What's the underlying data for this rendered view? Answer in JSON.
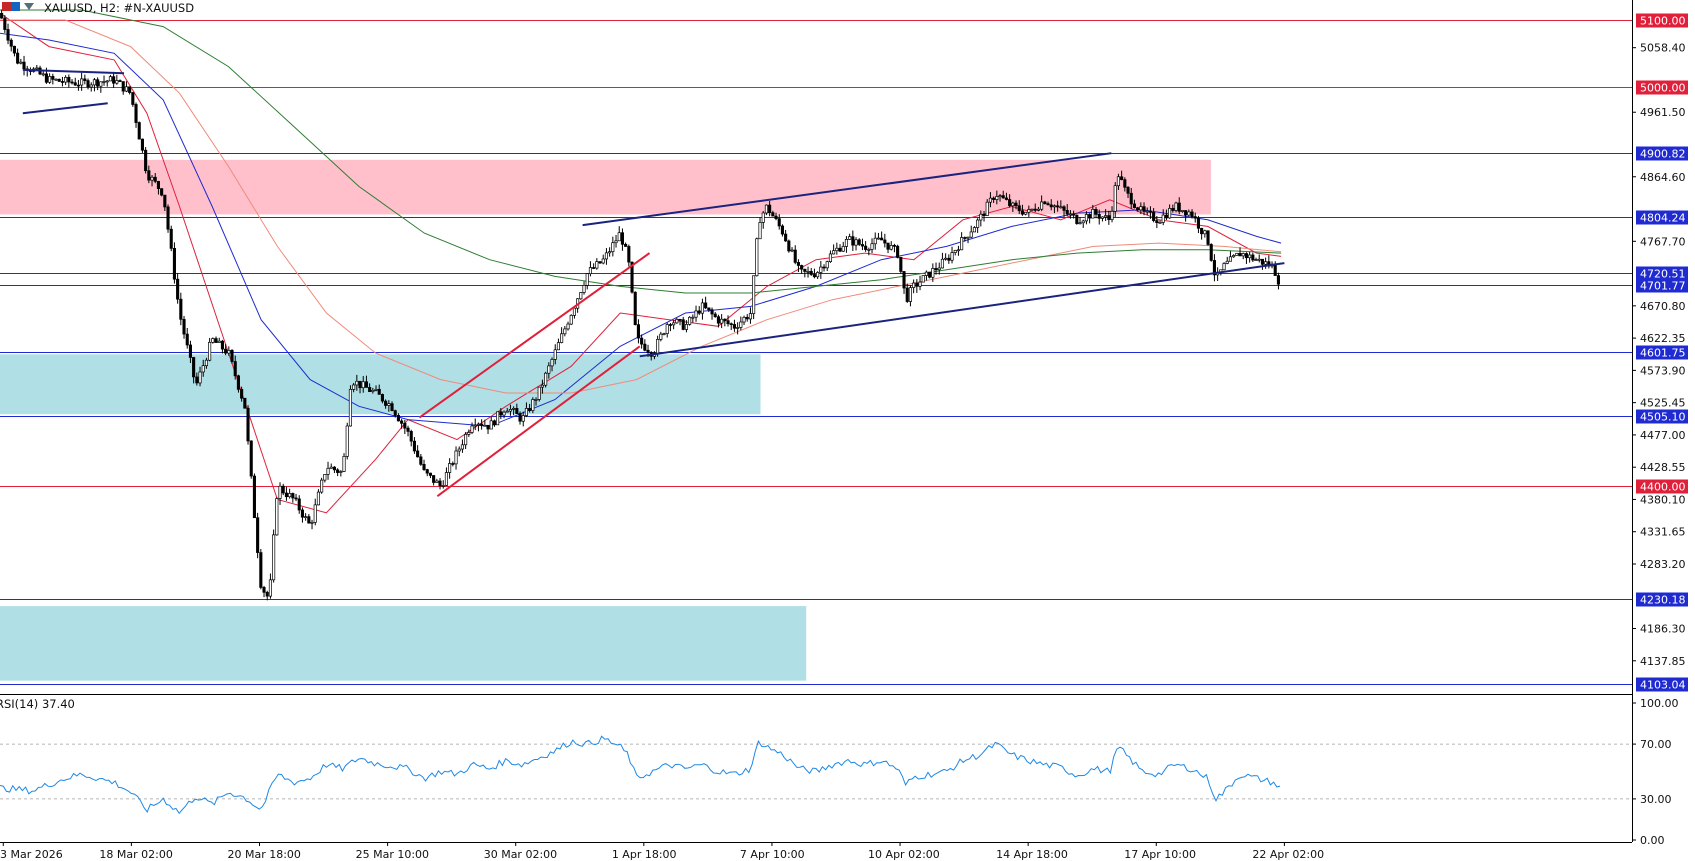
{
  "header": {
    "symbol_label": "XAUUSD, H2:  #N-XAUUSD",
    "rsi_label": "RSI(14) 37.40"
  },
  "chart_data": [
    {
      "type": "candlestick",
      "symbol": "XAUUSD",
      "timeframe": "H2",
      "ylim": [
        4100,
        5130
      ],
      "price_ticks": [
        "5058.40",
        "4961.50",
        "4864.60",
        "4767.70",
        "4670.80",
        "4622.35",
        "4573.90",
        "4525.45",
        "4477.00",
        "4428.55",
        "4380.10",
        "4331.65",
        "4283.20",
        "4186.30",
        "4137.85"
      ],
      "x_ticks": [
        "3 Mar 2026",
        "18 Mar 02:00",
        "20 Mar 18:00",
        "25 Mar 10:00",
        "30 Mar 02:00",
        "1 Apr 18:00",
        "7 Apr 10:00",
        "10 Apr 02:00",
        "14 Apr 18:00",
        "17 Apr 10:00",
        "22 Apr 02:00"
      ],
      "horizontal_levels": [
        {
          "price": 5100.0,
          "label": "5100.00",
          "color": "#e0203a"
        },
        {
          "price": 5000.0,
          "label": "5000.00",
          "color": "#e0203a"
        },
        {
          "price": 4900.82,
          "label": "4900.82",
          "color": "#1f2bd0"
        },
        {
          "price": 4804.24,
          "label": "4804.24",
          "color": "#1f2bd0"
        },
        {
          "price": 4720.51,
          "label": "4720.51",
          "color": "#1f2bd0"
        },
        {
          "price": 4701.77,
          "label": "4701.77",
          "color": "#1f2bd0"
        },
        {
          "price": 4601.75,
          "label": "4601.75",
          "color": "#1f2bd0"
        },
        {
          "price": 4505.1,
          "label": "4505.10",
          "color": "#1f2bd0"
        },
        {
          "price": 4400.0,
          "label": "4400.00",
          "color": "#e0203a"
        },
        {
          "price": 4230.18,
          "label": "4230.18",
          "color": "#1f2bd0"
        },
        {
          "price": 4103.04,
          "label": "4103.04",
          "color": "#1f2bd0"
        }
      ],
      "zones": [
        {
          "kind": "supply",
          "price_top": 4890,
          "price_bottom": 4808,
          "x_end_frac": 0.742,
          "color": "#ffc0cb"
        },
        {
          "kind": "demand",
          "price_top": 4598,
          "price_bottom": 4508,
          "x_end_frac": 0.466,
          "color": "#b0dfe5"
        },
        {
          "kind": "demand",
          "price_top": 4220,
          "price_bottom": 4108,
          "x_end_frac": 0.494,
          "color": "#b0dfe5"
        }
      ],
      "trendlines": [
        {
          "color": "#1a237e",
          "from": [
            0.014,
            4960
          ],
          "to": [
            0.066,
            4975
          ]
        },
        {
          "color": "#1a237e",
          "from": [
            0.014,
            5025
          ],
          "to": [
            0.076,
            5020
          ]
        },
        {
          "color": "#1a237e",
          "from": [
            0.357,
            4792
          ],
          "to": [
            0.681,
            4900
          ]
        },
        {
          "color": "#1a237e",
          "from": [
            0.392,
            4595
          ],
          "to": [
            0.787,
            4735
          ]
        },
        {
          "color": "#e0203a",
          "from": [
            0.257,
            4503
          ],
          "to": [
            0.398,
            4750
          ]
        },
        {
          "color": "#e0203a",
          "from": [
            0.268,
            4385
          ],
          "to": [
            0.392,
            4610
          ]
        }
      ],
      "moving_averages": [
        {
          "color": "#e0203a",
          "points": [
            [
              0.0,
              5110
            ],
            [
              0.03,
              5060
            ],
            [
              0.07,
              5040
            ],
            [
              0.09,
              4960
            ],
            [
              0.11,
              4820
            ],
            [
              0.14,
              4600
            ],
            [
              0.17,
              4380
            ],
            [
              0.2,
              4360
            ],
            [
              0.23,
              4440
            ],
            [
              0.25,
              4500
            ],
            [
              0.28,
              4470
            ],
            [
              0.31,
              4520
            ],
            [
              0.35,
              4580
            ],
            [
              0.38,
              4660
            ],
            [
              0.41,
              4650
            ],
            [
              0.44,
              4640
            ],
            [
              0.47,
              4700
            ],
            [
              0.5,
              4740
            ],
            [
              0.53,
              4750
            ],
            [
              0.56,
              4740
            ],
            [
              0.59,
              4800
            ],
            [
              0.62,
              4820
            ],
            [
              0.65,
              4800
            ],
            [
              0.68,
              4830
            ],
            [
              0.71,
              4800
            ],
            [
              0.74,
              4790
            ],
            [
              0.77,
              4750
            ],
            [
              0.785,
              4745
            ]
          ]
        },
        {
          "color": "#1f2bd0",
          "points": [
            [
              0.0,
              5080
            ],
            [
              0.03,
              5070
            ],
            [
              0.07,
              5050
            ],
            [
              0.1,
              4980
            ],
            [
              0.13,
              4820
            ],
            [
              0.16,
              4650
            ],
            [
              0.19,
              4560
            ],
            [
              0.22,
              4520
            ],
            [
              0.25,
              4500
            ],
            [
              0.3,
              4490
            ],
            [
              0.34,
              4530
            ],
            [
              0.38,
              4610
            ],
            [
              0.42,
              4660
            ],
            [
              0.46,
              4670
            ],
            [
              0.5,
              4700
            ],
            [
              0.54,
              4740
            ],
            [
              0.58,
              4760
            ],
            [
              0.62,
              4790
            ],
            [
              0.66,
              4810
            ],
            [
              0.7,
              4815
            ],
            [
              0.74,
              4800
            ],
            [
              0.77,
              4775
            ],
            [
              0.785,
              4765
            ]
          ]
        },
        {
          "color": "#f08a7a",
          "points": [
            [
              0.0,
              5100
            ],
            [
              0.04,
              5100
            ],
            [
              0.08,
              5060
            ],
            [
              0.11,
              4990
            ],
            [
              0.14,
              4880
            ],
            [
              0.17,
              4760
            ],
            [
              0.2,
              4660
            ],
            [
              0.23,
              4600
            ],
            [
              0.27,
              4560
            ],
            [
              0.31,
              4540
            ],
            [
              0.35,
              4540
            ],
            [
              0.39,
              4560
            ],
            [
              0.43,
              4610
            ],
            [
              0.47,
              4650
            ],
            [
              0.51,
              4680
            ],
            [
              0.55,
              4700
            ],
            [
              0.59,
              4720
            ],
            [
              0.63,
              4740
            ],
            [
              0.67,
              4760
            ],
            [
              0.71,
              4765
            ],
            [
              0.75,
              4760
            ],
            [
              0.785,
              4752
            ]
          ]
        },
        {
          "color": "#2e7d32",
          "points": [
            [
              0.0,
              5115
            ],
            [
              0.05,
              5115
            ],
            [
              0.1,
              5090
            ],
            [
              0.14,
              5030
            ],
            [
              0.18,
              4940
            ],
            [
              0.22,
              4850
            ],
            [
              0.26,
              4780
            ],
            [
              0.3,
              4740
            ],
            [
              0.34,
              4715
            ],
            [
              0.38,
              4700
            ],
            [
              0.42,
              4690
            ],
            [
              0.46,
              4690
            ],
            [
              0.5,
              4700
            ],
            [
              0.54,
              4710
            ],
            [
              0.58,
              4725
            ],
            [
              0.62,
              4740
            ],
            [
              0.66,
              4750
            ],
            [
              0.7,
              4755
            ],
            [
              0.74,
              4755
            ],
            [
              0.785,
              4750
            ]
          ]
        }
      ],
      "close_path": [
        [
          0.0,
          5110
        ],
        [
          0.01,
          5040
        ],
        [
          0.03,
          5010
        ],
        [
          0.05,
          5005
        ],
        [
          0.07,
          5010
        ],
        [
          0.08,
          4990
        ],
        [
          0.09,
          4870
        ],
        [
          0.1,
          4840
        ],
        [
          0.11,
          4660
        ],
        [
          0.12,
          4550
        ],
        [
          0.13,
          4620
        ],
        [
          0.14,
          4600
        ],
        [
          0.15,
          4520
        ],
        [
          0.155,
          4380
        ],
        [
          0.16,
          4250
        ],
        [
          0.165,
          4230
        ],
        [
          0.17,
          4400
        ],
        [
          0.18,
          4380
        ],
        [
          0.19,
          4340
        ],
        [
          0.2,
          4430
        ],
        [
          0.21,
          4420
        ],
        [
          0.215,
          4560
        ],
        [
          0.23,
          4540
        ],
        [
          0.24,
          4520
        ],
        [
          0.25,
          4480
        ],
        [
          0.26,
          4420
        ],
        [
          0.27,
          4400
        ],
        [
          0.28,
          4450
        ],
        [
          0.29,
          4500
        ],
        [
          0.3,
          4490
        ],
        [
          0.31,
          4520
        ],
        [
          0.32,
          4500
        ],
        [
          0.33,
          4540
        ],
        [
          0.34,
          4600
        ],
        [
          0.35,
          4660
        ],
        [
          0.36,
          4720
        ],
        [
          0.37,
          4740
        ],
        [
          0.38,
          4780
        ],
        [
          0.385,
          4740
        ],
        [
          0.39,
          4620
        ],
        [
          0.4,
          4600
        ],
        [
          0.41,
          4650
        ],
        [
          0.42,
          4640
        ],
        [
          0.43,
          4670
        ],
        [
          0.44,
          4650
        ],
        [
          0.45,
          4640
        ],
        [
          0.46,
          4660
        ],
        [
          0.465,
          4800
        ],
        [
          0.47,
          4820
        ],
        [
          0.48,
          4780
        ],
        [
          0.49,
          4720
        ],
        [
          0.5,
          4720
        ],
        [
          0.51,
          4750
        ],
        [
          0.52,
          4770
        ],
        [
          0.53,
          4760
        ],
        [
          0.54,
          4770
        ],
        [
          0.55,
          4750
        ],
        [
          0.555,
          4680
        ],
        [
          0.56,
          4700
        ],
        [
          0.57,
          4720
        ],
        [
          0.58,
          4740
        ],
        [
          0.59,
          4770
        ],
        [
          0.6,
          4800
        ],
        [
          0.61,
          4840
        ],
        [
          0.62,
          4820
        ],
        [
          0.63,
          4810
        ],
        [
          0.64,
          4830
        ],
        [
          0.65,
          4815
        ],
        [
          0.66,
          4800
        ],
        [
          0.67,
          4810
        ],
        [
          0.68,
          4800
        ],
        [
          0.685,
          4870
        ],
        [
          0.69,
          4840
        ],
        [
          0.7,
          4810
        ],
        [
          0.71,
          4800
        ],
        [
          0.72,
          4820
        ],
        [
          0.73,
          4810
        ],
        [
          0.74,
          4770
        ],
        [
          0.745,
          4710
        ],
        [
          0.75,
          4730
        ],
        [
          0.76,
          4750
        ],
        [
          0.77,
          4740
        ],
        [
          0.78,
          4730
        ],
        [
          0.785,
          4700
        ]
      ],
      "rsi": {
        "period": 14,
        "value": 37.4,
        "ylim": [
          0,
          100
        ],
        "ticks": [
          "100.00",
          "70.00",
          "30.00",
          "0.00"
        ],
        "levels": [
          70,
          30
        ],
        "points": [
          [
            0.0,
            38
          ],
          [
            0.02,
            36
          ],
          [
            0.04,
            45
          ],
          [
            0.05,
            48
          ],
          [
            0.07,
            42
          ],
          [
            0.08,
            35
          ],
          [
            0.09,
            22
          ],
          [
            0.1,
            30
          ],
          [
            0.11,
            20
          ],
          [
            0.12,
            32
          ],
          [
            0.13,
            26
          ],
          [
            0.14,
            35
          ],
          [
            0.15,
            31
          ],
          [
            0.16,
            22
          ],
          [
            0.17,
            48
          ],
          [
            0.18,
            42
          ],
          [
            0.19,
            45
          ],
          [
            0.2,
            55
          ],
          [
            0.21,
            52
          ],
          [
            0.22,
            60
          ],
          [
            0.23,
            56
          ],
          [
            0.24,
            54
          ],
          [
            0.25,
            52
          ],
          [
            0.26,
            45
          ],
          [
            0.27,
            50
          ],
          [
            0.28,
            48
          ],
          [
            0.29,
            55
          ],
          [
            0.3,
            52
          ],
          [
            0.31,
            58
          ],
          [
            0.32,
            55
          ],
          [
            0.33,
            60
          ],
          [
            0.34,
            65
          ],
          [
            0.35,
            72
          ],
          [
            0.36,
            70
          ],
          [
            0.37,
            74
          ],
          [
            0.38,
            68
          ],
          [
            0.385,
            62
          ],
          [
            0.39,
            45
          ],
          [
            0.4,
            50
          ],
          [
            0.41,
            55
          ],
          [
            0.42,
            52
          ],
          [
            0.43,
            55
          ],
          [
            0.44,
            50
          ],
          [
            0.45,
            48
          ],
          [
            0.46,
            52
          ],
          [
            0.465,
            72
          ],
          [
            0.47,
            68
          ],
          [
            0.48,
            62
          ],
          [
            0.49,
            52
          ],
          [
            0.5,
            50
          ],
          [
            0.51,
            55
          ],
          [
            0.52,
            58
          ],
          [
            0.53,
            55
          ],
          [
            0.54,
            58
          ],
          [
            0.55,
            52
          ],
          [
            0.555,
            40
          ],
          [
            0.56,
            46
          ],
          [
            0.57,
            48
          ],
          [
            0.58,
            50
          ],
          [
            0.59,
            58
          ],
          [
            0.6,
            62
          ],
          [
            0.61,
            70
          ],
          [
            0.62,
            62
          ],
          [
            0.63,
            58
          ],
          [
            0.64,
            55
          ],
          [
            0.65,
            53
          ],
          [
            0.66,
            47
          ],
          [
            0.67,
            52
          ],
          [
            0.68,
            50
          ],
          [
            0.685,
            68
          ],
          [
            0.69,
            62
          ],
          [
            0.7,
            50
          ],
          [
            0.71,
            48
          ],
          [
            0.72,
            55
          ],
          [
            0.73,
            52
          ],
          [
            0.74,
            45
          ],
          [
            0.745,
            30
          ],
          [
            0.75,
            35
          ],
          [
            0.76,
            48
          ],
          [
            0.77,
            45
          ],
          [
            0.78,
            42
          ],
          [
            0.785,
            37.4
          ]
        ]
      }
    }
  ]
}
